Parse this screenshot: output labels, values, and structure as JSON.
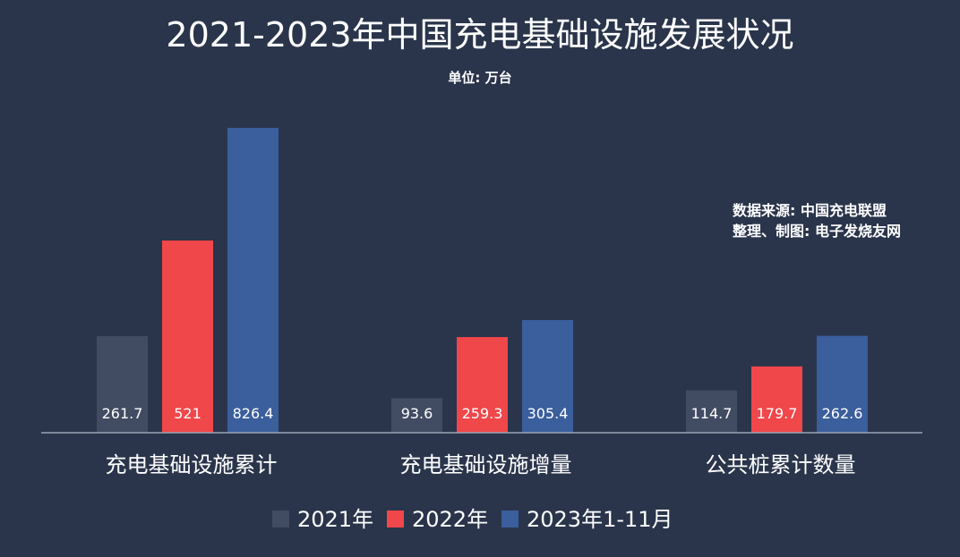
{
  "chart_data": {
    "type": "bar",
    "title": "2021-2023年中国充电基础设施发展状况",
    "subtitle": "单位: 万台",
    "annotations": [
      "数据来源: 中国充电联盟",
      "整理、制图: 电子发烧友网"
    ],
    "categories": [
      "充电基础设施累计",
      "充电基础设施增量",
      "公共桩累计数量"
    ],
    "series": [
      {
        "name": "2021年",
        "values": [
          261.7,
          93.6,
          114.7
        ],
        "color": "#414c63"
      },
      {
        "name": "2022年",
        "values": [
          521,
          259.3,
          179.7
        ],
        "color": "#f0474a"
      },
      {
        "name": "2023年1-11月",
        "values": [
          826.4,
          305.4,
          262.6
        ],
        "color": "#3b5e9c"
      }
    ],
    "value_labels": [
      [
        "261.7",
        "521",
        "826.4"
      ],
      [
        "93.6",
        "259.3",
        "305.4"
      ],
      [
        "114.7",
        "179.7",
        "262.6"
      ]
    ],
    "ylim": [
      0,
      826.4
    ],
    "grid": false,
    "legend_position": "bottom-center",
    "axis_color": "#9aa3b5"
  }
}
